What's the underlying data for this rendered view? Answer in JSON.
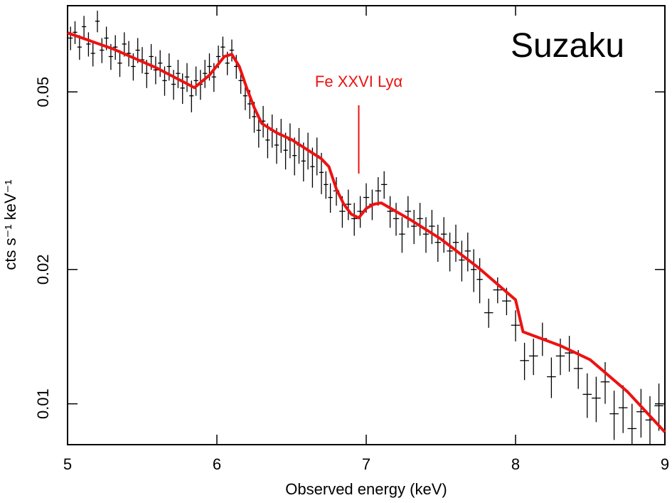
{
  "chart_data": {
    "type": "errorbar",
    "title": "Suzaku",
    "xlabel": "Observed energy (keV)",
    "ylabel": "cts s⁻¹ keV⁻¹",
    "annotation": {
      "text": "Fe XXVI Lyα",
      "x": 6.95
    },
    "xlim": [
      5,
      9
    ],
    "xticks": [
      5,
      6,
      7,
      8,
      9
    ],
    "ylim": [
      0.0081,
      0.078
    ],
    "yticks": [
      0.01,
      0.02,
      0.05
    ],
    "log_y": true,
    "series": [
      {
        "color": "#000000",
        "x": [
          5.02,
          5.05,
          5.08,
          5.11,
          5.14,
          5.17,
          5.2,
          5.23,
          5.26,
          5.29,
          5.32,
          5.35,
          5.38,
          5.41,
          5.44,
          5.47,
          5.5,
          5.53,
          5.56,
          5.59,
          5.62,
          5.65,
          5.68,
          5.71,
          5.74,
          5.77,
          5.8,
          5.83,
          5.86,
          5.89,
          5.92,
          5.95,
          5.98,
          6.01,
          6.04,
          6.07,
          6.1,
          6.13,
          6.16,
          6.19,
          6.22,
          6.25,
          6.28,
          6.31,
          6.34,
          6.37,
          6.4,
          6.43,
          6.46,
          6.49,
          6.52,
          6.55,
          6.58,
          6.61,
          6.64,
          6.67,
          6.7,
          6.73,
          6.76,
          6.8,
          6.84,
          6.88,
          6.92,
          6.96,
          7.0,
          7.04,
          7.08,
          7.12,
          7.16,
          7.2,
          7.24,
          7.28,
          7.32,
          7.36,
          7.4,
          7.44,
          7.48,
          7.52,
          7.56,
          7.6,
          7.64,
          7.68,
          7.72,
          7.76,
          7.82,
          7.88,
          7.94,
          8.0,
          8.06,
          8.12,
          8.18,
          8.24,
          8.3,
          8.36,
          8.42,
          8.48,
          8.54,
          8.6,
          8.66,
          8.72,
          8.78,
          8.84,
          8.9,
          8.96
        ],
        "values": [
          0.066,
          0.068,
          0.063,
          0.07,
          0.064,
          0.061,
          0.072,
          0.062,
          0.066,
          0.06,
          0.063,
          0.058,
          0.064,
          0.061,
          0.057,
          0.062,
          0.059,
          0.055,
          0.06,
          0.056,
          0.058,
          0.053,
          0.057,
          0.052,
          0.055,
          0.051,
          0.054,
          0.049,
          0.053,
          0.052,
          0.055,
          0.057,
          0.054,
          0.06,
          0.063,
          0.058,
          0.062,
          0.057,
          0.053,
          0.049,
          0.047,
          0.044,
          0.041,
          0.043,
          0.039,
          0.041,
          0.038,
          0.04,
          0.037,
          0.039,
          0.036,
          0.038,
          0.035,
          0.037,
          0.034,
          0.036,
          0.033,
          0.031,
          0.029,
          0.03,
          0.027,
          0.028,
          0.026,
          0.027,
          0.029,
          0.028,
          0.03,
          0.031,
          0.027,
          0.026,
          0.024,
          0.027,
          0.025,
          0.026,
          0.024,
          0.025,
          0.023,
          0.024,
          0.022,
          0.023,
          0.021,
          0.022,
          0.02,
          0.019,
          0.016,
          0.018,
          0.017,
          0.015,
          0.0125,
          0.0128,
          0.014,
          0.0115,
          0.0128,
          0.013,
          0.012,
          0.0105,
          0.0103,
          0.0112,
          0.0095,
          0.0098,
          0.0088,
          0.0096,
          0.0092,
          0.0099
        ],
        "yerr": [
          0.004,
          0.004,
          0.004,
          0.004,
          0.004,
          0.004,
          0.004,
          0.004,
          0.004,
          0.004,
          0.004,
          0.004,
          0.004,
          0.004,
          0.004,
          0.004,
          0.004,
          0.004,
          0.004,
          0.004,
          0.004,
          0.004,
          0.004,
          0.004,
          0.004,
          0.004,
          0.004,
          0.004,
          0.004,
          0.004,
          0.004,
          0.004,
          0.004,
          0.0035,
          0.0035,
          0.0035,
          0.0035,
          0.0035,
          0.0035,
          0.0035,
          0.0035,
          0.0035,
          0.0035,
          0.0035,
          0.0035,
          0.0035,
          0.0035,
          0.0035,
          0.0035,
          0.0035,
          0.0035,
          0.0035,
          0.0035,
          0.0035,
          0.0035,
          0.0035,
          0.0035,
          0.0022,
          0.0022,
          0.0022,
          0.0022,
          0.0022,
          0.0022,
          0.0022,
          0.0022,
          0.0022,
          0.0022,
          0.0022,
          0.0022,
          0.0022,
          0.0022,
          0.0022,
          0.0022,
          0.0022,
          0.0022,
          0.0022,
          0.0022,
          0.0022,
          0.0022,
          0.0022,
          0.0022,
          0.0022,
          0.0022,
          0.0022,
          0.0012,
          0.0012,
          0.0012,
          0.0012,
          0.0012,
          0.0012,
          0.0012,
          0.0012,
          0.0012,
          0.0012,
          0.0012,
          0.0012,
          0.0012,
          0.0012,
          0.0012,
          0.0012,
          0.0012,
          0.0012,
          0.0012,
          0.0012
        ]
      },
      {
        "color": "#ee1111",
        "x": [
          5.0,
          5.3,
          5.6,
          5.85,
          5.95,
          6.05,
          6.1,
          6.15,
          6.2,
          6.25,
          6.3,
          6.4,
          6.5,
          6.6,
          6.7,
          6.75,
          6.8,
          6.85,
          6.9,
          6.95,
          7.0,
          7.05,
          7.1,
          7.3,
          7.5,
          7.75,
          8.0,
          8.05,
          8.3,
          8.5,
          8.75,
          9.0
        ],
        "values": [
          0.0678,
          0.0625,
          0.0565,
          0.0511,
          0.0545,
          0.06,
          0.0607,
          0.057,
          0.051,
          0.0461,
          0.0425,
          0.0405,
          0.0391,
          0.0372,
          0.0354,
          0.034,
          0.0303,
          0.028,
          0.0266,
          0.0261,
          0.0274,
          0.028,
          0.0282,
          0.0258,
          0.0234,
          0.0202,
          0.0171,
          0.0145,
          0.0135,
          0.01255,
          0.01064,
          0.00864
        ]
      }
    ]
  }
}
